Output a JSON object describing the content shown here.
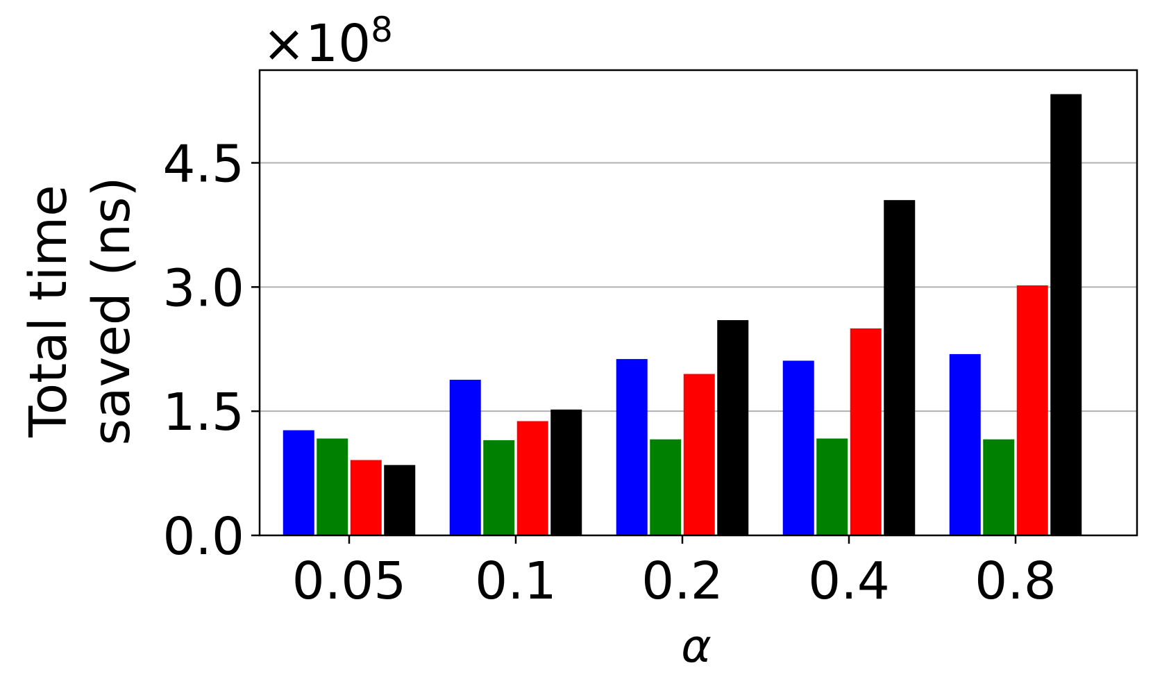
{
  "chart_data": {
    "type": "bar",
    "categories": [
      "0.05",
      "0.1",
      "0.2",
      "0.4",
      "0.8"
    ],
    "series": [
      {
        "color": "#0000ff",
        "values": [
          1.27,
          1.88,
          2.13,
          2.11,
          2.19
        ]
      },
      {
        "color": "#008000",
        "values": [
          1.17,
          1.15,
          1.16,
          1.17,
          1.16
        ]
      },
      {
        "color": "#ff0000",
        "values": [
          0.91,
          1.38,
          1.95,
          2.5,
          3.02
        ]
      },
      {
        "color": "#000000",
        "values": [
          0.85,
          1.52,
          2.6,
          4.05,
          5.33
        ]
      }
    ],
    "ylabel_lines": [
      "Total time",
      "saved (ns)"
    ],
    "xlabel": "α",
    "yticks": [
      0.0,
      1.5,
      3.0,
      4.5
    ],
    "ytick_labels": [
      "0.0",
      "1.5",
      "3.0",
      "4.5"
    ],
    "ylim": [
      0,
      5.62
    ],
    "offset_base": "×10",
    "offset_exp": "8",
    "grid": "y"
  }
}
